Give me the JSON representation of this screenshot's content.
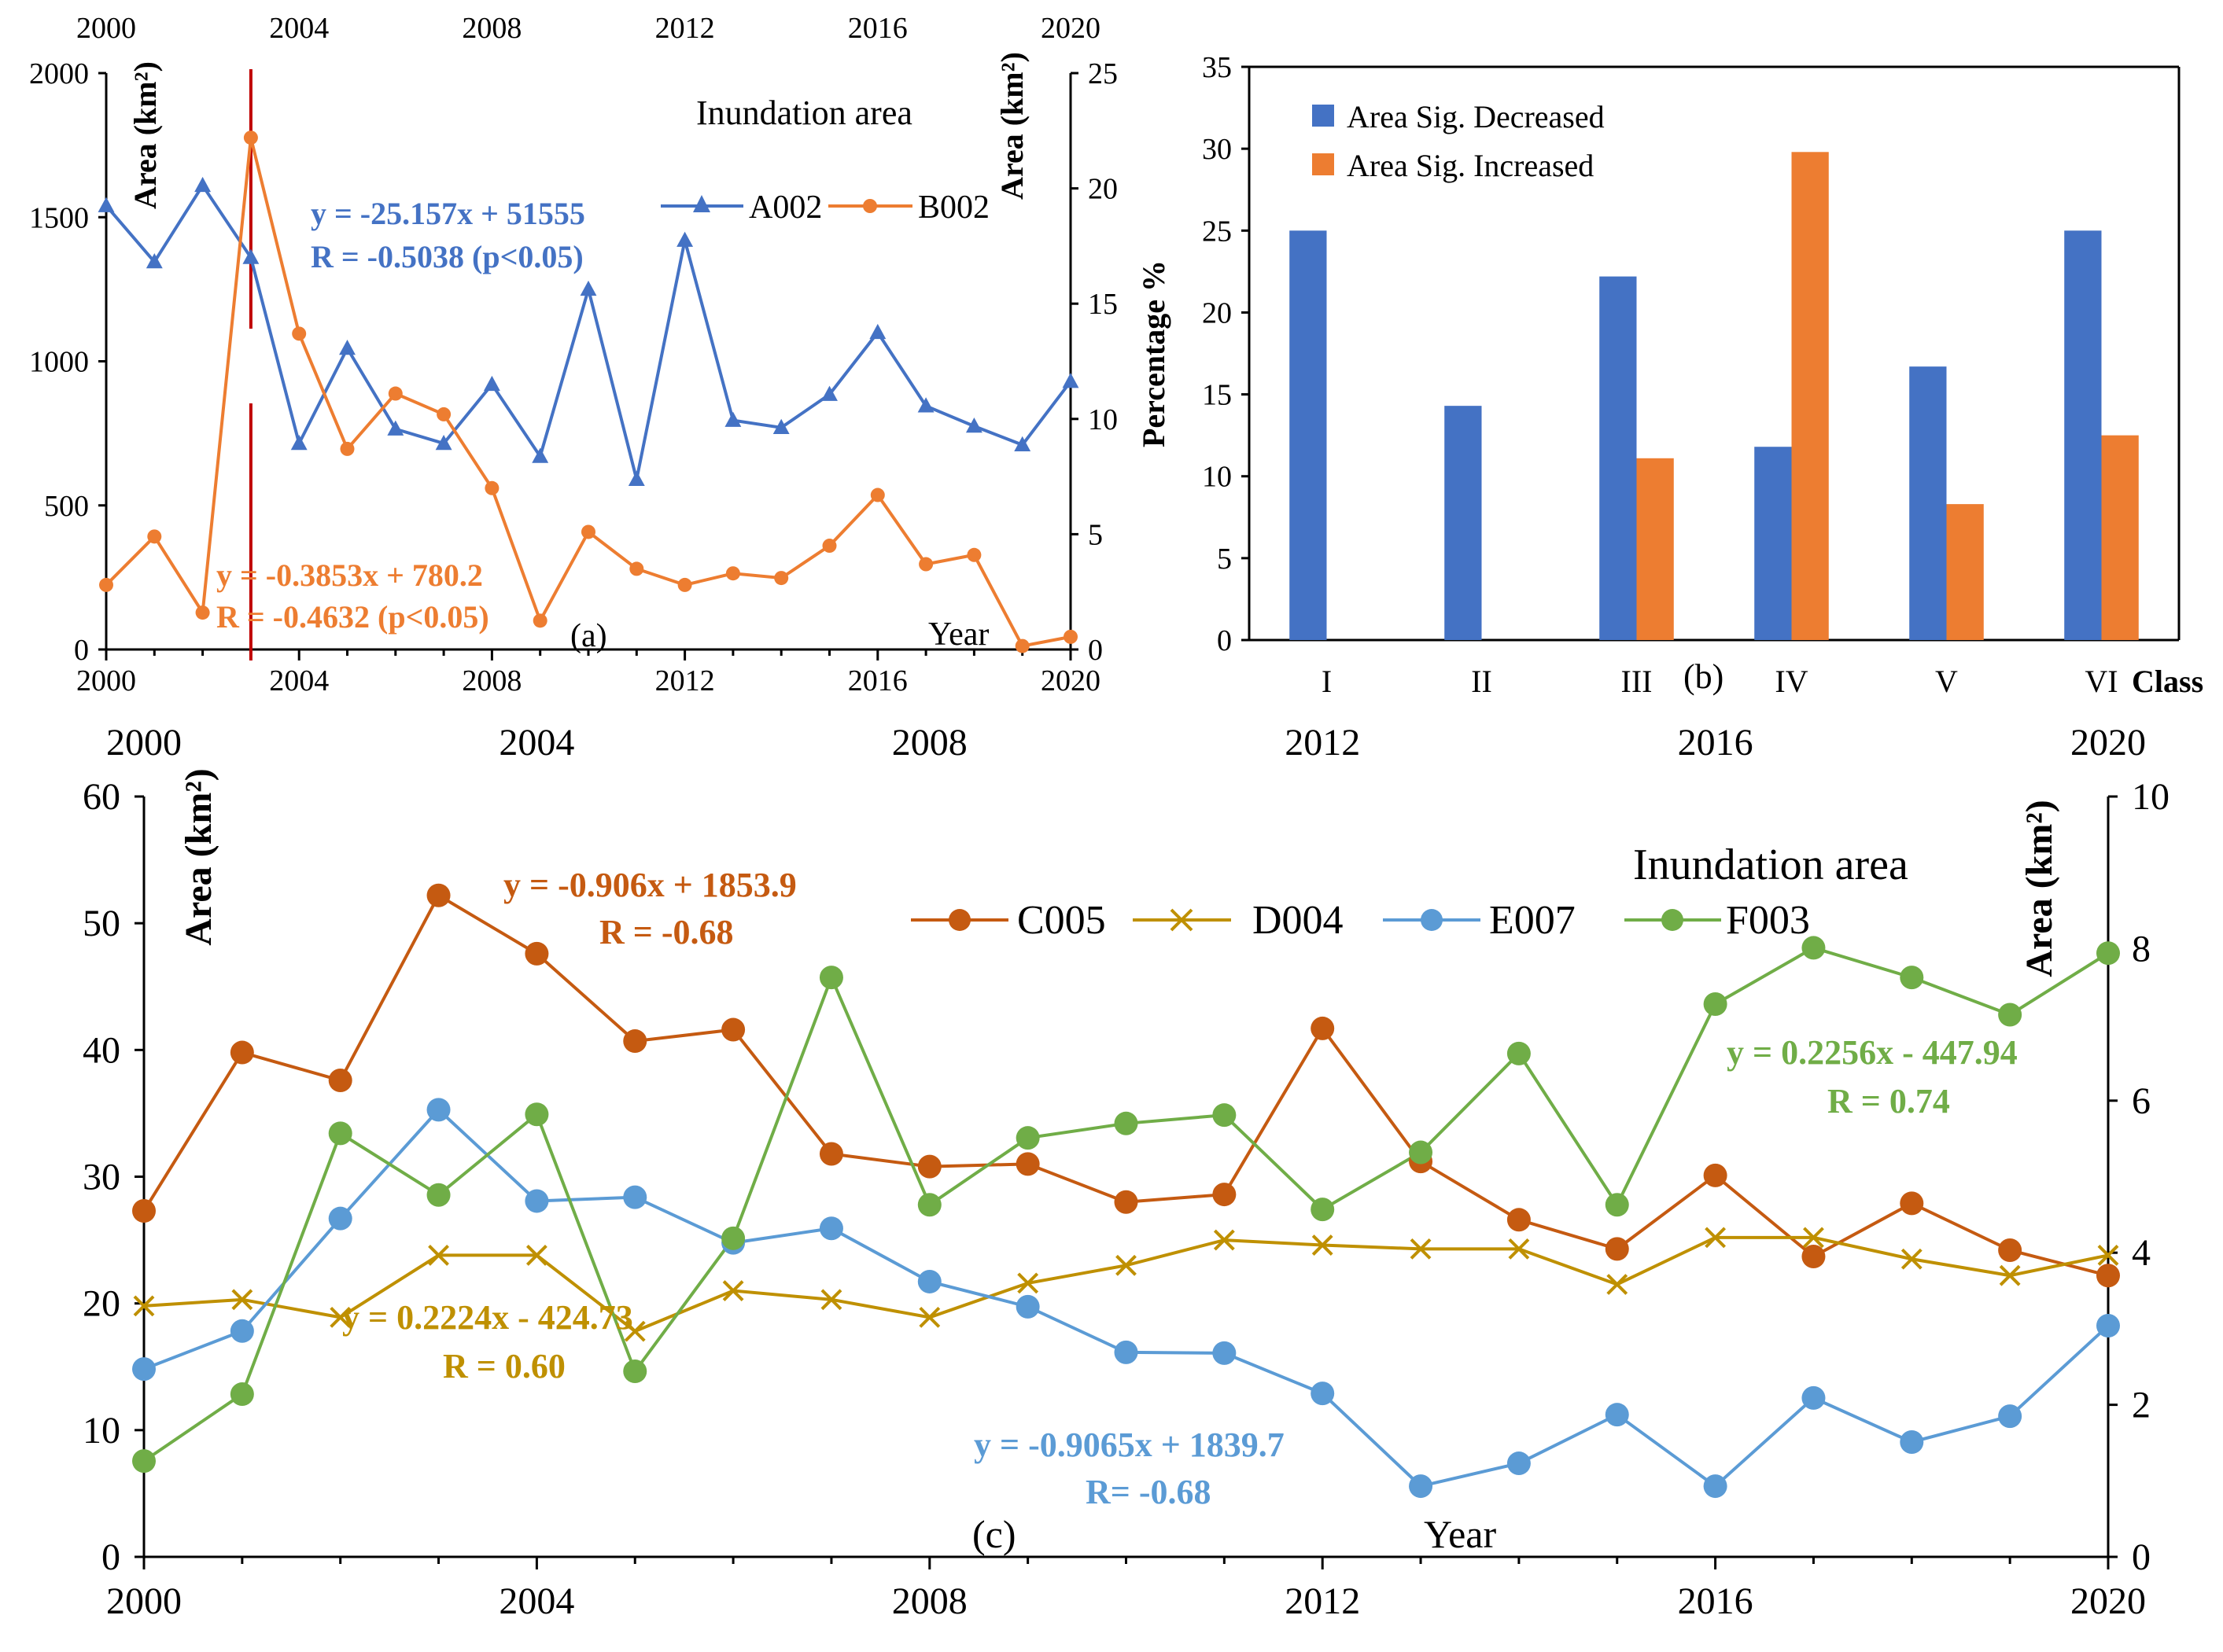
{
  "chart_data": [
    {
      "type": "line",
      "panel_label": "(a)",
      "title": "Inundation area",
      "xlabel": "Year",
      "ylabel_left": "Area (km²)",
      "ylabel_right": "Area (km²)",
      "xlim": [
        2000,
        2020
      ],
      "ylim_left": [
        0,
        2000
      ],
      "ylim_right": [
        0,
        25
      ],
      "x_ticks": [
        "2000",
        "2004",
        "2008",
        "2012",
        "2016",
        "2020"
      ],
      "y_ticks_left": [
        "0",
        "500",
        "1000",
        "1500",
        "2000"
      ],
      "y_ticks_right": [
        "0",
        "5",
        "10",
        "15",
        "20",
        "25"
      ],
      "change_point_year": 2003,
      "x": [
        2000,
        2001,
        2002,
        2003,
        2004,
        2005,
        2006,
        2007,
        2008,
        2009,
        2010,
        2011,
        2012,
        2013,
        2014,
        2015,
        2016,
        2017,
        2018,
        2019,
        2020
      ],
      "series": [
        {
          "name": "A002",
          "axis": "left",
          "color": "#4472C4",
          "marker": "triangle",
          "values": [
            1540,
            1345,
            1610,
            1360,
            715,
            1045,
            765,
            715,
            920,
            670,
            1250,
            590,
            1420,
            795,
            770,
            885,
            1100,
            845,
            775,
            710,
            930
          ]
        },
        {
          "name": "B002",
          "axis": "right",
          "color": "#ED7D31",
          "marker": "circle",
          "values": [
            2.8,
            4.9,
            1.6,
            22.2,
            13.7,
            8.7,
            11.1,
            10.2,
            7.0,
            1.25,
            5.1,
            3.5,
            2.8,
            3.3,
            3.1,
            4.5,
            6.7,
            3.7,
            4.1,
            0.15,
            0.55
          ]
        }
      ],
      "annotations": [
        {
          "line1": "y = -25.157x + 51555",
          "line2": "R = -0.5038  (p<0.05)",
          "color": "#4472C4"
        },
        {
          "line1": "y = -0.3853x + 780.2",
          "line2": "R = -0.4632 (p<0.05)",
          "color": "#ED7D31"
        }
      ]
    },
    {
      "type": "bar",
      "panel_label": "(b)",
      "xlabel": "Class",
      "ylabel": "Percentage %",
      "ylim": [
        0,
        35
      ],
      "y_ticks": [
        "0",
        "5",
        "10",
        "15",
        "20",
        "25",
        "30",
        "35"
      ],
      "categories": [
        "I",
        "II",
        "III",
        "IV",
        "V",
        "VI"
      ],
      "series": [
        {
          "name": "Area Sig. Decreased",
          "color": "#4472C4",
          "values": [
            25,
            14.3,
            22.2,
            11.8,
            16.7,
            25
          ]
        },
        {
          "name": "Area Sig. Increased",
          "color": "#ED7D31",
          "values": [
            0,
            0,
            11.1,
            29.8,
            8.3,
            12.5
          ]
        }
      ]
    },
    {
      "type": "line",
      "panel_label": "(c)",
      "title": "Inundation area",
      "xlabel": "Year",
      "ylabel_left": "Area (km²)",
      "ylabel_right": "Area (km²)",
      "xlim": [
        2000,
        2020
      ],
      "ylim_left": [
        0,
        60
      ],
      "ylim_right": [
        0,
        10
      ],
      "x_ticks": [
        "2000",
        "2004",
        "2008",
        "2012",
        "2016",
        "2020"
      ],
      "y_ticks_left": [
        "0",
        "10",
        "20",
        "30",
        "40",
        "50",
        "60"
      ],
      "y_ticks_right": [
        "0",
        "2",
        "4",
        "6",
        "8",
        "10"
      ],
      "x": [
        2000,
        2001,
        2002,
        2003,
        2004,
        2005,
        2006,
        2007,
        2008,
        2009,
        2010,
        2011,
        2012,
        2013,
        2014,
        2015,
        2016,
        2017,
        2018,
        2019,
        2020
      ],
      "series": [
        {
          "name": "C005",
          "axis": "left",
          "color": "#C55A11",
          "marker": "circle",
          "values": [
            27.3,
            39.8,
            37.6,
            52.2,
            47.6,
            40.7,
            41.6,
            31.8,
            30.8,
            31.0,
            28.0,
            28.6,
            41.7,
            31.2,
            26.6,
            24.3,
            30.1,
            23.7,
            27.9,
            24.2,
            22.2
          ]
        },
        {
          "name": "D004",
          "axis": "left",
          "color": "#BF9000",
          "marker": "x",
          "values": [
            19.8,
            20.3,
            18.9,
            23.8,
            23.8,
            17.8,
            21.0,
            20.3,
            18.9,
            21.6,
            23.0,
            25.0,
            24.6,
            24.3,
            24.3,
            21.5,
            25.2,
            25.2,
            23.5,
            22.2,
            23.8
          ]
        },
        {
          "name": "E007",
          "axis": "right",
          "color": "#5B9BD5",
          "marker": "circle",
          "values": [
            2.47,
            2.97,
            4.45,
            5.88,
            4.68,
            4.73,
            4.13,
            4.32,
            3.62,
            3.29,
            2.69,
            2.68,
            2.15,
            0.93,
            1.23,
            1.87,
            0.93,
            2.09,
            1.51,
            1.85,
            3.04
          ]
        },
        {
          "name": "F003",
          "axis": "right",
          "color": "#70AD47",
          "marker": "circle",
          "values": [
            1.26,
            2.14,
            5.57,
            4.76,
            5.82,
            2.44,
            4.19,
            7.62,
            4.63,
            5.51,
            5.7,
            5.81,
            4.57,
            5.32,
            6.62,
            4.63,
            7.27,
            8.01,
            7.62,
            7.13,
            7.94
          ]
        }
      ],
      "annotations": [
        {
          "line1": "y = -0.906x + 1853.9",
          "line2": "R = -0.68",
          "color": "#C55A11"
        },
        {
          "line1": "y = 0.2224x - 424.73",
          "line2": "R = 0.60",
          "color": "#BF9000"
        },
        {
          "line1": "y = -0.9065x + 1839.7",
          "line2": "R= -0.68",
          "color": "#5B9BD5"
        },
        {
          "line1": "y = 0.2256x - 447.94",
          "line2": "R = 0.74",
          "color": "#70AD47"
        }
      ]
    }
  ],
  "overlay_axes": {
    "top_a": [
      "2000",
      "2004",
      "2008",
      "2012",
      "2016",
      "2020"
    ],
    "middle_strip": [
      "2000",
      "2004",
      "2008",
      "2012",
      "2016",
      "2020"
    ]
  }
}
